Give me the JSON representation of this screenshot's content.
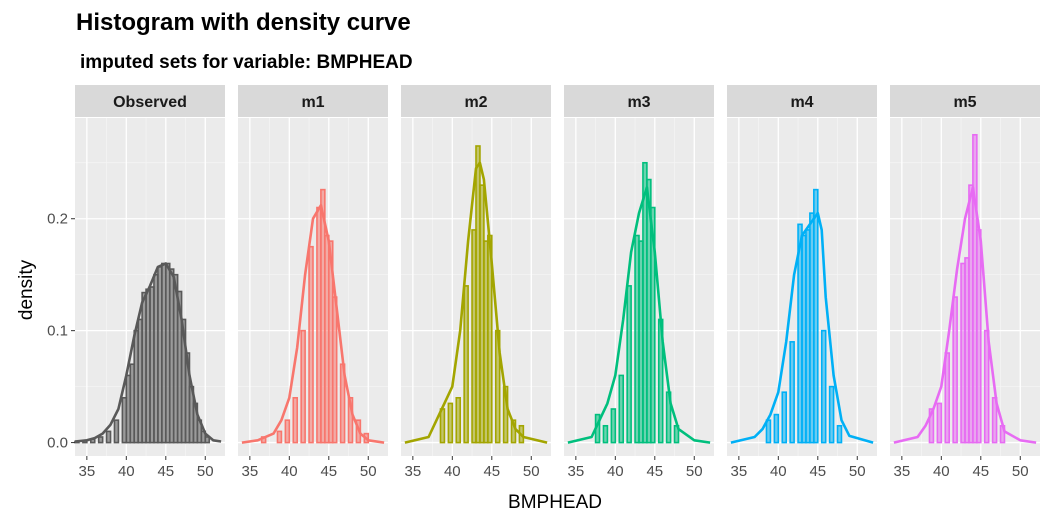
{
  "chart_data": {
    "type": "histogram",
    "title": "Histogram with density curve",
    "subtitle": "imputed sets for variable:  BMPHEAD",
    "xlabel": "BMPHEAD",
    "ylabel": "density",
    "xlim": [
      33.5,
      52.5
    ],
    "ylim": [
      -0.012,
      0.29
    ],
    "x_ticks": [
      35,
      40,
      45,
      50
    ],
    "y_ticks": [
      0.0,
      0.1,
      0.2
    ],
    "y_tick_labels": [
      "0.0",
      "0.1",
      "0.2"
    ],
    "bin_width": 1,
    "grid": true,
    "legend": "none",
    "panels": [
      {
        "name": "Observed",
        "color": "#595959",
        "bins": [
          [
            33.5,
            0.001
          ],
          [
            34.5,
            0.002
          ],
          [
            35.5,
            0.003
          ],
          [
            36.5,
            0.005
          ],
          [
            37.5,
            0.01
          ],
          [
            38.5,
            0.02
          ],
          [
            39.5,
            0.04
          ],
          [
            40,
            0.06
          ],
          [
            40.5,
            0.07
          ],
          [
            41,
            0.1
          ],
          [
            41.5,
            0.11
          ],
          [
            42,
            0.134
          ],
          [
            42.5,
            0.137
          ],
          [
            43,
            0.139
          ],
          [
            43.5,
            0.15
          ],
          [
            44,
            0.157
          ],
          [
            44.5,
            0.16
          ],
          [
            45,
            0.16
          ],
          [
            45.5,
            0.155
          ],
          [
            46,
            0.15
          ],
          [
            46.5,
            0.135
          ],
          [
            47,
            0.11
          ],
          [
            47.5,
            0.08
          ],
          [
            48,
            0.05
          ],
          [
            48.5,
            0.035
          ],
          [
            49,
            0.02
          ],
          [
            49.5,
            0.01
          ],
          [
            50,
            0.005
          ]
        ],
        "density": [
          [
            33.5,
            0.001
          ],
          [
            35,
            0.002
          ],
          [
            36,
            0.004
          ],
          [
            37,
            0.008
          ],
          [
            38,
            0.016
          ],
          [
            39,
            0.03
          ],
          [
            40,
            0.06
          ],
          [
            41,
            0.095
          ],
          [
            42,
            0.125
          ],
          [
            43,
            0.14
          ],
          [
            44,
            0.157
          ],
          [
            45,
            0.16
          ],
          [
            46,
            0.148
          ],
          [
            47,
            0.11
          ],
          [
            48,
            0.06
          ],
          [
            49,
            0.025
          ],
          [
            50,
            0.008
          ],
          [
            51,
            0.002
          ],
          [
            52,
            0.001
          ]
        ]
      },
      {
        "name": "m1",
        "color": "#F8766D",
        "bins": [
          [
            36.5,
            0.005
          ],
          [
            38.5,
            0.01
          ],
          [
            39.5,
            0.02
          ],
          [
            40.5,
            0.04
          ],
          [
            41.5,
            0.1
          ],
          [
            42.5,
            0.175
          ],
          [
            43.5,
            0.21
          ],
          [
            44,
            0.226
          ],
          [
            44.5,
            0.185
          ],
          [
            45,
            0.18
          ],
          [
            45.5,
            0.13
          ],
          [
            46.5,
            0.07
          ],
          [
            47.5,
            0.04
          ],
          [
            48.5,
            0.02
          ],
          [
            49.5,
            0.008
          ]
        ],
        "density": [
          [
            34,
            0.0
          ],
          [
            36,
            0.002
          ],
          [
            38,
            0.008
          ],
          [
            39,
            0.02
          ],
          [
            40,
            0.04
          ],
          [
            41,
            0.085
          ],
          [
            42,
            0.15
          ],
          [
            43,
            0.2
          ],
          [
            44,
            0.212
          ],
          [
            45,
            0.18
          ],
          [
            46,
            0.12
          ],
          [
            47,
            0.06
          ],
          [
            48,
            0.025
          ],
          [
            49,
            0.008
          ],
          [
            50,
            0.002
          ],
          [
            52,
            0.0
          ]
        ]
      },
      {
        "name": "m2",
        "color": "#A3A500",
        "bins": [
          [
            38.5,
            0.03
          ],
          [
            39.5,
            0.035
          ],
          [
            40.5,
            0.04
          ],
          [
            41.5,
            0.14
          ],
          [
            42.5,
            0.19
          ],
          [
            43,
            0.265
          ],
          [
            43.5,
            0.23
          ],
          [
            44,
            0.18
          ],
          [
            44.5,
            0.185
          ],
          [
            45.5,
            0.1
          ],
          [
            46.5,
            0.05
          ],
          [
            47.5,
            0.02
          ],
          [
            48.5,
            0.015
          ]
        ],
        "density": [
          [
            34,
            0.0
          ],
          [
            37,
            0.005
          ],
          [
            38,
            0.02
          ],
          [
            39,
            0.035
          ],
          [
            40,
            0.05
          ],
          [
            41,
            0.1
          ],
          [
            42,
            0.18
          ],
          [
            43,
            0.245
          ],
          [
            43.5,
            0.25
          ],
          [
            44,
            0.235
          ],
          [
            45,
            0.16
          ],
          [
            46,
            0.08
          ],
          [
            47,
            0.03
          ],
          [
            48,
            0.012
          ],
          [
            49,
            0.005
          ],
          [
            52,
            0.0
          ]
        ]
      },
      {
        "name": "m3",
        "color": "#00BF7D",
        "bins": [
          [
            37.5,
            0.025
          ],
          [
            38.5,
            0.015
          ],
          [
            39.5,
            0.03
          ],
          [
            40.5,
            0.06
          ],
          [
            41.5,
            0.14
          ],
          [
            42.5,
            0.185
          ],
          [
            43,
            0.18
          ],
          [
            43.5,
            0.25
          ],
          [
            44,
            0.235
          ],
          [
            44.5,
            0.21
          ],
          [
            45.5,
            0.11
          ],
          [
            46.5,
            0.045
          ],
          [
            47.5,
            0.015
          ]
        ],
        "density": [
          [
            34,
            0.0
          ],
          [
            37,
            0.005
          ],
          [
            38,
            0.02
          ],
          [
            39,
            0.035
          ],
          [
            40,
            0.06
          ],
          [
            41,
            0.11
          ],
          [
            42,
            0.17
          ],
          [
            43,
            0.205
          ],
          [
            44,
            0.228
          ],
          [
            45,
            0.17
          ],
          [
            46,
            0.09
          ],
          [
            47,
            0.035
          ],
          [
            48,
            0.012
          ],
          [
            50,
            0.002
          ],
          [
            52,
            0.0
          ]
        ]
      },
      {
        "name": "m4",
        "color": "#00B0F6",
        "bins": [
          [
            38.5,
            0.02
          ],
          [
            39.5,
            0.025
          ],
          [
            40.5,
            0.045
          ],
          [
            41.5,
            0.09
          ],
          [
            42.5,
            0.195
          ],
          [
            43,
            0.185
          ],
          [
            43.5,
            0.19
          ],
          [
            44,
            0.205
          ],
          [
            44.5,
            0.226
          ],
          [
            45.5,
            0.1
          ],
          [
            46.5,
            0.05
          ],
          [
            47.5,
            0.015
          ]
        ],
        "density": [
          [
            34,
            0.0
          ],
          [
            37,
            0.005
          ],
          [
            38,
            0.012
          ],
          [
            39,
            0.025
          ],
          [
            40,
            0.045
          ],
          [
            41,
            0.09
          ],
          [
            42,
            0.15
          ],
          [
            43,
            0.185
          ],
          [
            44,
            0.195
          ],
          [
            45,
            0.205
          ],
          [
            45.5,
            0.19
          ],
          [
            46,
            0.13
          ],
          [
            47,
            0.06
          ],
          [
            48,
            0.02
          ],
          [
            49,
            0.006
          ],
          [
            52,
            0.0
          ]
        ]
      },
      {
        "name": "m5",
        "color": "#E76BF3",
        "bins": [
          [
            38.5,
            0.03
          ],
          [
            39.5,
            0.035
          ],
          [
            40.5,
            0.08
          ],
          [
            41.5,
            0.13
          ],
          [
            42.5,
            0.16
          ],
          [
            43,
            0.165
          ],
          [
            43.5,
            0.23
          ],
          [
            44,
            0.275
          ],
          [
            44.5,
            0.19
          ],
          [
            45.5,
            0.1
          ],
          [
            46.5,
            0.04
          ],
          [
            47.5,
            0.015
          ]
        ],
        "density": [
          [
            34,
            0.0
          ],
          [
            37,
            0.005
          ],
          [
            38,
            0.015
          ],
          [
            39,
            0.03
          ],
          [
            40,
            0.05
          ],
          [
            41,
            0.1
          ],
          [
            42,
            0.155
          ],
          [
            43,
            0.2
          ],
          [
            44,
            0.228
          ],
          [
            45,
            0.18
          ],
          [
            46,
            0.09
          ],
          [
            47,
            0.035
          ],
          [
            48,
            0.01
          ],
          [
            50,
            0.002
          ],
          [
            52,
            0.0
          ]
        ]
      }
    ]
  }
}
